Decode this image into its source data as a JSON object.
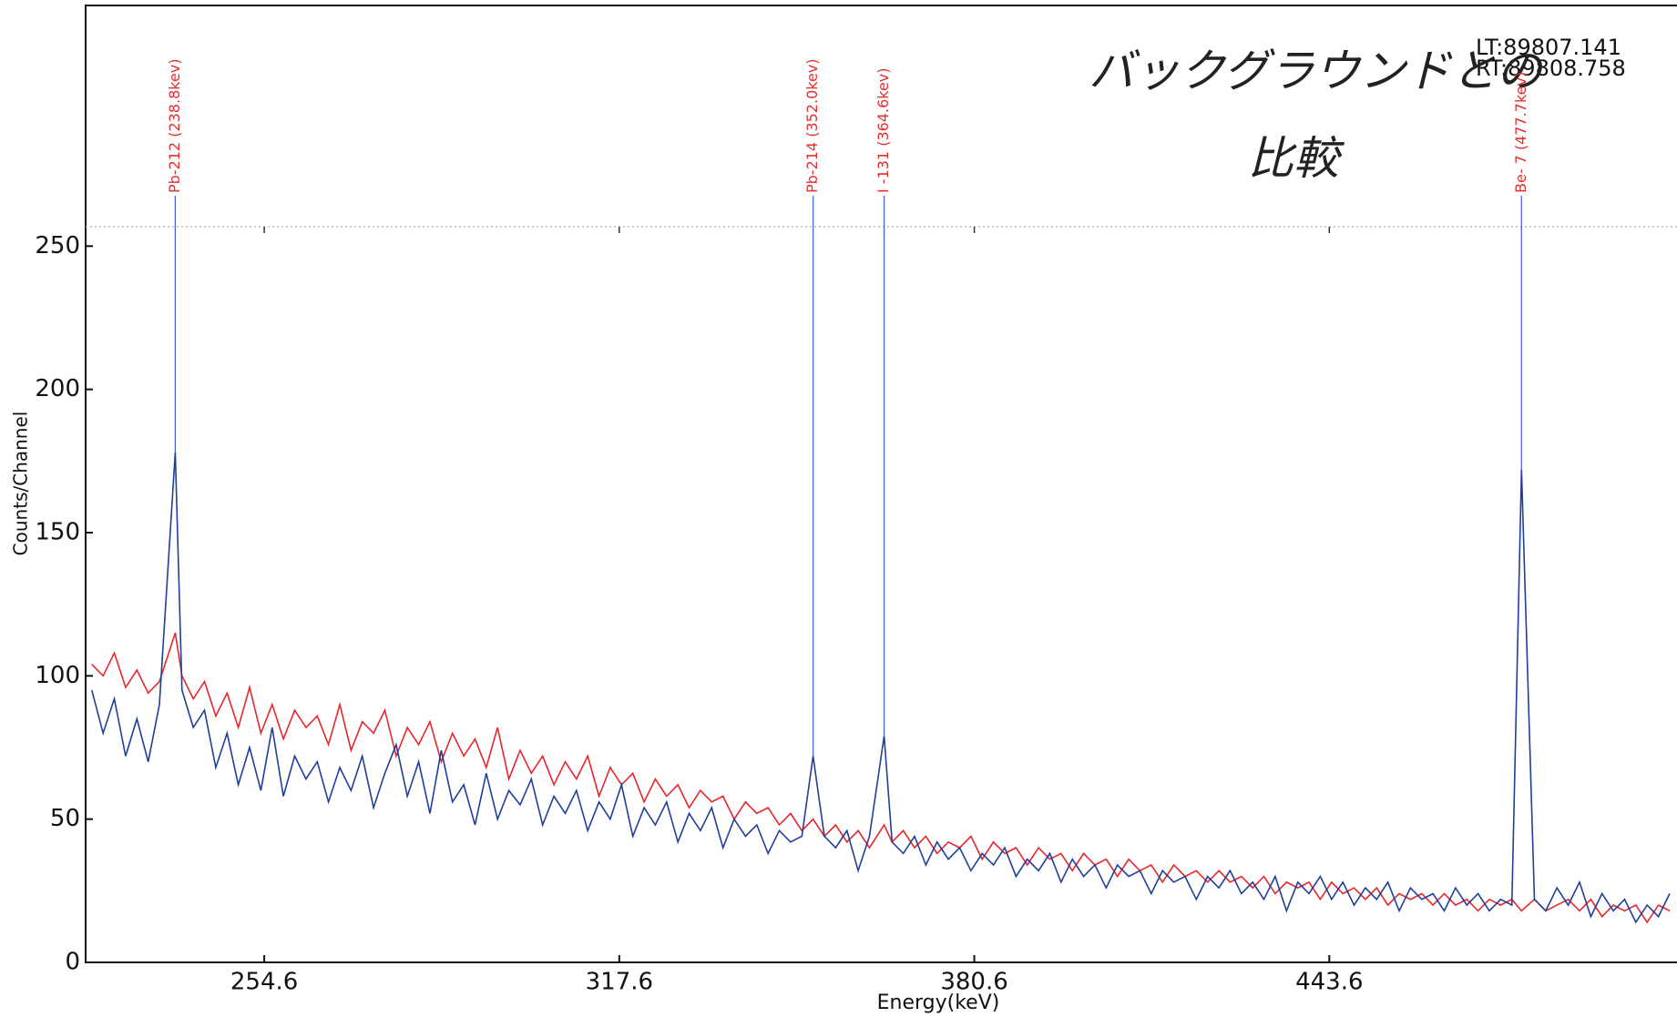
{
  "chart_data": {
    "type": "line",
    "x_label": "Energy(keV)",
    "y_label": "Counts/Channel",
    "xlim": [
      222.9,
      505.3
    ],
    "xticks": [
      254.6,
      317.6,
      380.6,
      443.6
    ],
    "ylim": [
      0,
      334
    ],
    "yticks": [
      0,
      50,
      100,
      150,
      200,
      250
    ],
    "x": [
      224,
      226,
      228,
      230,
      232,
      234,
      236,
      238.8,
      240,
      242,
      244,
      246,
      248,
      250,
      252,
      254,
      256,
      258,
      260,
      262,
      264,
      266,
      268,
      270,
      272,
      274,
      276,
      278,
      280,
      282,
      284,
      286,
      288,
      290,
      292,
      294,
      296,
      298,
      300,
      302,
      304,
      306,
      308,
      310,
      312,
      314,
      316,
      318,
      320,
      322,
      324,
      326,
      328,
      330,
      332,
      334,
      336,
      338,
      340,
      342,
      344,
      346,
      348,
      350,
      352,
      354,
      356,
      358,
      360,
      362,
      364.6,
      366,
      368,
      370,
      372,
      374,
      376,
      378,
      380,
      382,
      384,
      386,
      388,
      390,
      392,
      394,
      396,
      398,
      400,
      402,
      404,
      406,
      408,
      410,
      412,
      414,
      416,
      418,
      420,
      422,
      424,
      426,
      428,
      430,
      432,
      434,
      436,
      438,
      440,
      442,
      444,
      446,
      448,
      450,
      452,
      454,
      456,
      458,
      460,
      462,
      464,
      466,
      468,
      470,
      472,
      474,
      476,
      477.7,
      480,
      482,
      484,
      486,
      488,
      490,
      492,
      494,
      496,
      498,
      500,
      502,
      504
    ],
    "series": [
      {
        "color": "#e8262b",
        "values": [
          104,
          100,
          108,
          96,
          102,
          94,
          98,
          115,
          100,
          92,
          98,
          86,
          94,
          82,
          96,
          80,
          90,
          78,
          88,
          82,
          86,
          76,
          90,
          74,
          84,
          80,
          88,
          72,
          82,
          76,
          84,
          70,
          80,
          72,
          78,
          68,
          82,
          64,
          74,
          66,
          72,
          62,
          70,
          64,
          72,
          58,
          68,
          62,
          66,
          56,
          64,
          58,
          62,
          54,
          60,
          56,
          58,
          50,
          56,
          52,
          54,
          48,
          52,
          46,
          50,
          44,
          48,
          42,
          46,
          40,
          48,
          42,
          46,
          40,
          44,
          38,
          42,
          40,
          44,
          36,
          42,
          38,
          40,
          34,
          40,
          36,
          38,
          32,
          38,
          34,
          36,
          30,
          36,
          32,
          34,
          28,
          34,
          30,
          32,
          28,
          32,
          28,
          30,
          26,
          30,
          24,
          28,
          26,
          28,
          22,
          28,
          24,
          26,
          22,
          26,
          20,
          24,
          22,
          24,
          20,
          24,
          20,
          22,
          18,
          22,
          20,
          22,
          18,
          22,
          18,
          20,
          22,
          18,
          22,
          16,
          20,
          18,
          20,
          14,
          20,
          18
        ]
      },
      {
        "color": "#1f3f9a",
        "values": [
          95,
          80,
          92,
          72,
          85,
          70,
          90,
          178,
          95,
          82,
          88,
          68,
          80,
          62,
          75,
          60,
          82,
          58,
          72,
          64,
          70,
          56,
          68,
          60,
          72,
          54,
          66,
          76,
          58,
          70,
          52,
          74,
          56,
          62,
          48,
          66,
          50,
          60,
          55,
          64,
          48,
          58,
          52,
          60,
          46,
          56,
          50,
          62,
          44,
          54,
          48,
          56,
          42,
          52,
          46,
          54,
          40,
          50,
          44,
          48,
          38,
          46,
          42,
          44,
          72,
          44,
          40,
          46,
          32,
          44,
          79,
          42,
          38,
          44,
          34,
          42,
          36,
          40,
          32,
          38,
          34,
          40,
          30,
          36,
          32,
          38,
          28,
          36,
          30,
          34,
          26,
          34,
          30,
          32,
          24,
          32,
          28,
          30,
          22,
          30,
          26,
          32,
          24,
          28,
          22,
          30,
          18,
          28,
          24,
          30,
          22,
          28,
          20,
          26,
          22,
          28,
          18,
          26,
          22,
          24,
          18,
          26,
          20,
          24,
          18,
          22,
          20,
          172,
          22,
          18,
          26,
          20,
          28,
          16,
          24,
          18,
          22,
          14,
          20,
          16,
          24
        ]
      }
    ],
    "peaks": [
      {
        "energy": 238.8,
        "label": "Pb-212 (238.8kev)"
      },
      {
        "energy": 352.0,
        "label": "Pb-214 (352.0kev)"
      },
      {
        "energy": 364.6,
        "label": "I -131 (364.6kev)"
      },
      {
        "energy": 477.7,
        "label": "Be- 7 (477.7kev)"
      }
    ],
    "live_time": "LT:89807.141",
    "real_time": "RT:89808.758",
    "note": [
      "バックグラウンドとの",
      "比較"
    ]
  }
}
